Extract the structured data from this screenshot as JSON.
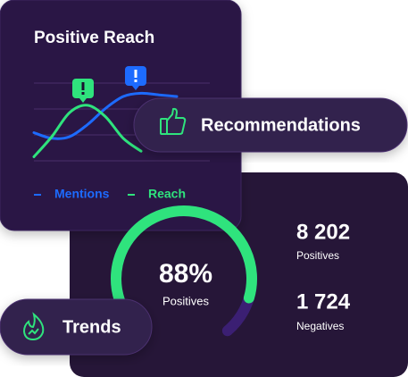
{
  "positive_reach": {
    "title": "Positive Reach",
    "series": [
      {
        "name": "Mentions",
        "color": "#1d6bff",
        "values": [
          35,
          28,
          30,
          45,
          65,
          80,
          84,
          82,
          80
        ]
      },
      {
        "name": "Reach",
        "color": "#2fe37d",
        "values": [
          5,
          30,
          60,
          69,
          55,
          28,
          12
        ]
      }
    ]
  },
  "recommendations": {
    "label": "Recommendations"
  },
  "gauge": {
    "value": 88,
    "label": "88%",
    "caption": "Positives",
    "color": "#2fe37d"
  },
  "stats": [
    {
      "value": "8 202",
      "caption": "Positives"
    },
    {
      "value": "1 724",
      "caption": "Negatives"
    }
  ],
  "trends": {
    "label": "Trends"
  }
}
